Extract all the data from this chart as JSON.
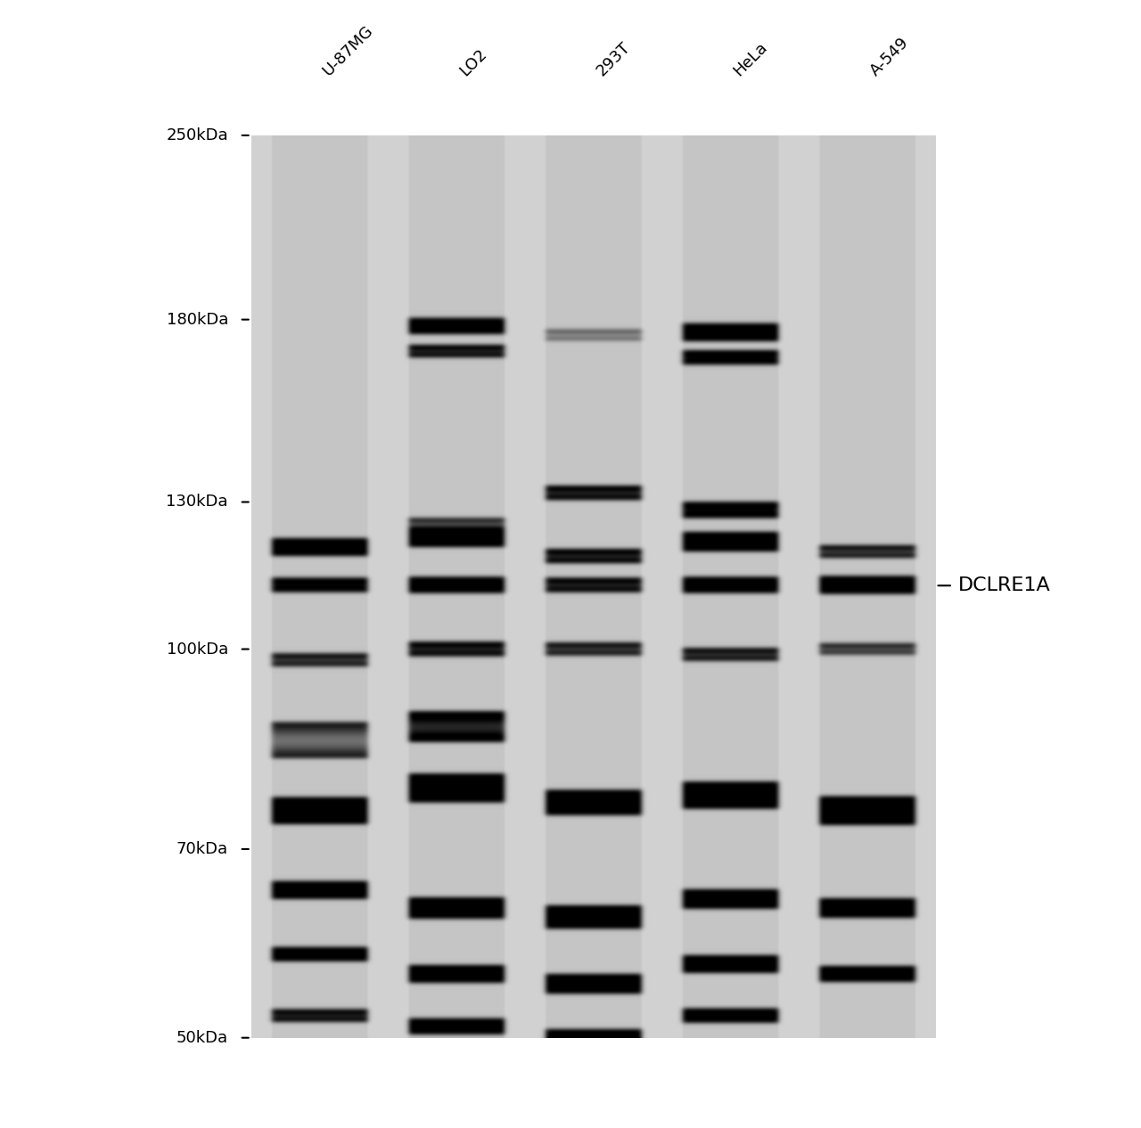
{
  "cell_lines": [
    "U-87MG",
    "LO2",
    "293T",
    "HeLa",
    "A-549"
  ],
  "mw_markers": [
    250,
    180,
    130,
    100,
    70,
    50
  ],
  "mw_marker_labels": [
    "250kDa",
    "180kDa",
    "130kDa",
    "100kDa",
    "70kDa",
    "50kDa"
  ],
  "dclre1a_label": "DCLRE1A",
  "dclre1a_mw": 112,
  "background_color": "#ffffff",
  "gel_bg_color": "#d8d8d8",
  "band_color_dark": "#1a1a1a",
  "band_color_medium": "#555555",
  "band_color_light": "#999999",
  "figure_width": 12.8,
  "figure_height": 12.66,
  "title_fontsize": 13,
  "label_fontsize": 13,
  "marker_fontsize": 13
}
